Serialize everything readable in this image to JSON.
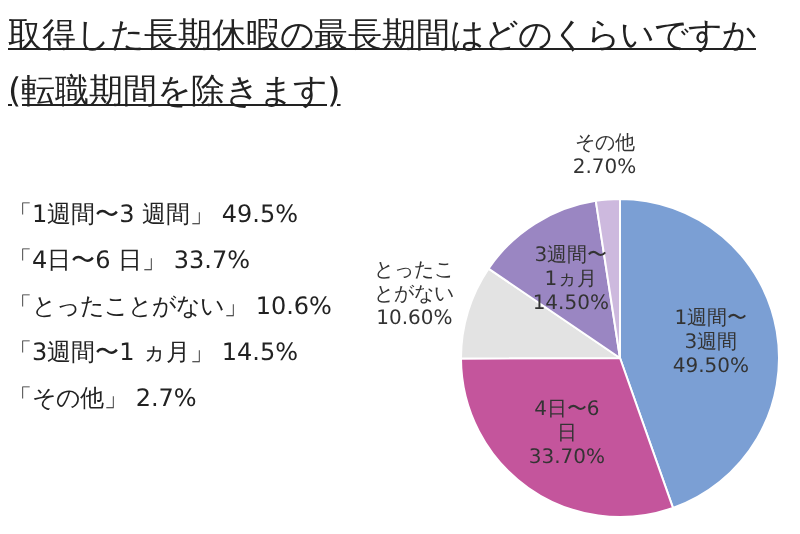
{
  "chart_data": {
    "type": "pie",
    "title": "取得した長期休暇の最長期間はどのくらいですか",
    "subtitle": "(転職期間を除きます)",
    "categories": [
      "1週間〜3週間",
      "4日〜6日",
      "とったことがない",
      "3週間〜1ヵ月",
      "その他"
    ],
    "values": [
      49.5,
      33.7,
      10.6,
      14.5,
      2.7
    ],
    "value_labels": [
      "49.50%",
      "33.70%",
      "10.60%",
      "14.50%",
      "2.70%"
    ],
    "colors": [
      "#7b9fd4",
      "#c4559c",
      "#e3e3e3",
      "#9a86c2",
      "#cdb9de"
    ],
    "annotations": [
      "「1週間〜3 週間」 49.5%",
      "「4日〜6 日」 33.7%",
      "「とったことがない」 10.6%",
      "「3週間〜1 ヵ月」 14.5%",
      "「その他」 2.7%"
    ]
  }
}
